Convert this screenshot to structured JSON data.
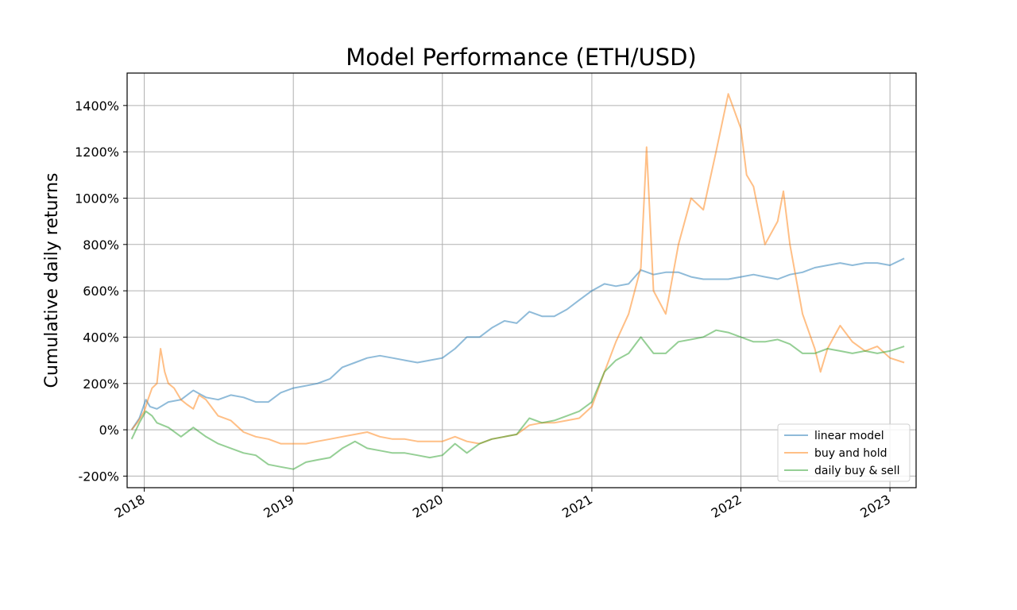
{
  "chart_data": {
    "type": "line",
    "title": "Model Performance (ETH/USD)",
    "xlabel": "",
    "ylabel": "Cumulative daily returns",
    "x_axis": {
      "kind": "date",
      "range": [
        "2017-11-20",
        "2023-03-06"
      ],
      "ticks": [
        {
          "date": "2018-01-01",
          "label": "2018"
        },
        {
          "date": "2019-01-01",
          "label": "2019"
        },
        {
          "date": "2020-01-01",
          "label": "2020"
        },
        {
          "date": "2021-01-01",
          "label": "2021"
        },
        {
          "date": "2022-01-01",
          "label": "2022"
        },
        {
          "date": "2023-01-01",
          "label": "2023"
        }
      ],
      "tick_label_rotation_deg": 30
    },
    "y_axis": {
      "range": [
        -250,
        1540
      ],
      "ticks": [
        -200,
        0,
        200,
        400,
        600,
        800,
        1000,
        1200,
        1400
      ],
      "tick_labels": [
        "-200%",
        "0%",
        "200%",
        "400%",
        "600%",
        "800%",
        "1000%",
        "1200%",
        "1400%"
      ]
    },
    "grid": true,
    "legend_position": "lower-right",
    "series": [
      {
        "name": "linear model",
        "color": "#1f77b4",
        "opacity": 0.5,
        "points": [
          [
            "2017-12-01",
            0
          ],
          [
            "2017-12-20",
            50
          ],
          [
            "2018-01-05",
            130
          ],
          [
            "2018-01-15",
            100
          ],
          [
            "2018-02-01",
            90
          ],
          [
            "2018-03-01",
            120
          ],
          [
            "2018-04-01",
            130
          ],
          [
            "2018-05-01",
            170
          ],
          [
            "2018-06-01",
            140
          ],
          [
            "2018-07-01",
            130
          ],
          [
            "2018-08-01",
            150
          ],
          [
            "2018-09-01",
            140
          ],
          [
            "2018-10-01",
            120
          ],
          [
            "2018-11-01",
            120
          ],
          [
            "2018-12-01",
            160
          ],
          [
            "2019-01-01",
            180
          ],
          [
            "2019-02-01",
            190
          ],
          [
            "2019-03-01",
            200
          ],
          [
            "2019-04-01",
            220
          ],
          [
            "2019-05-01",
            270
          ],
          [
            "2019-06-01",
            290
          ],
          [
            "2019-07-01",
            310
          ],
          [
            "2019-08-01",
            320
          ],
          [
            "2019-09-01",
            310
          ],
          [
            "2019-10-01",
            300
          ],
          [
            "2019-11-01",
            290
          ],
          [
            "2019-12-01",
            300
          ],
          [
            "2020-01-01",
            310
          ],
          [
            "2020-02-01",
            350
          ],
          [
            "2020-03-01",
            400
          ],
          [
            "2020-04-01",
            400
          ],
          [
            "2020-05-01",
            440
          ],
          [
            "2020-06-01",
            470
          ],
          [
            "2020-07-01",
            460
          ],
          [
            "2020-08-01",
            510
          ],
          [
            "2020-09-01",
            490
          ],
          [
            "2020-10-01",
            490
          ],
          [
            "2020-11-01",
            520
          ],
          [
            "2020-12-01",
            560
          ],
          [
            "2021-01-01",
            600
          ],
          [
            "2021-02-01",
            630
          ],
          [
            "2021-03-01",
            620
          ],
          [
            "2021-04-01",
            630
          ],
          [
            "2021-05-01",
            690
          ],
          [
            "2021-06-01",
            670
          ],
          [
            "2021-07-01",
            680
          ],
          [
            "2021-08-01",
            680
          ],
          [
            "2021-09-01",
            660
          ],
          [
            "2021-10-01",
            650
          ],
          [
            "2021-11-01",
            650
          ],
          [
            "2021-12-01",
            650
          ],
          [
            "2022-01-01",
            660
          ],
          [
            "2022-02-01",
            670
          ],
          [
            "2022-03-01",
            660
          ],
          [
            "2022-04-01",
            650
          ],
          [
            "2022-05-01",
            670
          ],
          [
            "2022-06-01",
            680
          ],
          [
            "2022-07-01",
            700
          ],
          [
            "2022-08-01",
            710
          ],
          [
            "2022-09-01",
            720
          ],
          [
            "2022-10-01",
            710
          ],
          [
            "2022-11-01",
            720
          ],
          [
            "2022-12-01",
            720
          ],
          [
            "2023-01-01",
            710
          ],
          [
            "2023-02-05",
            740
          ]
        ]
      },
      {
        "name": "buy and hold",
        "color": "#ff7f0e",
        "opacity": 0.5,
        "points": [
          [
            "2017-12-01",
            0
          ],
          [
            "2017-12-15",
            30
          ],
          [
            "2018-01-01",
            80
          ],
          [
            "2018-01-10",
            130
          ],
          [
            "2018-01-20",
            180
          ],
          [
            "2018-02-01",
            200
          ],
          [
            "2018-02-10",
            350
          ],
          [
            "2018-02-20",
            250
          ],
          [
            "2018-03-01",
            200
          ],
          [
            "2018-03-15",
            180
          ],
          [
            "2018-04-01",
            130
          ],
          [
            "2018-04-15",
            110
          ],
          [
            "2018-05-01",
            90
          ],
          [
            "2018-05-15",
            150
          ],
          [
            "2018-06-01",
            130
          ],
          [
            "2018-07-01",
            60
          ],
          [
            "2018-08-01",
            40
          ],
          [
            "2018-09-01",
            -10
          ],
          [
            "2018-10-01",
            -30
          ],
          [
            "2018-11-01",
            -40
          ],
          [
            "2018-12-01",
            -60
          ],
          [
            "2019-01-01",
            -60
          ],
          [
            "2019-02-01",
            -60
          ],
          [
            "2019-03-01",
            -50
          ],
          [
            "2019-04-01",
            -40
          ],
          [
            "2019-05-01",
            -30
          ],
          [
            "2019-06-01",
            -20
          ],
          [
            "2019-07-01",
            -10
          ],
          [
            "2019-08-01",
            -30
          ],
          [
            "2019-09-01",
            -40
          ],
          [
            "2019-10-01",
            -40
          ],
          [
            "2019-11-01",
            -50
          ],
          [
            "2019-12-01",
            -50
          ],
          [
            "2020-01-01",
            -50
          ],
          [
            "2020-02-01",
            -30
          ],
          [
            "2020-03-01",
            -50
          ],
          [
            "2020-04-01",
            -60
          ],
          [
            "2020-05-01",
            -40
          ],
          [
            "2020-06-01",
            -30
          ],
          [
            "2020-07-01",
            -20
          ],
          [
            "2020-08-01",
            20
          ],
          [
            "2020-09-01",
            30
          ],
          [
            "2020-10-01",
            30
          ],
          [
            "2020-11-01",
            40
          ],
          [
            "2020-12-01",
            50
          ],
          [
            "2021-01-01",
            100
          ],
          [
            "2021-02-01",
            250
          ],
          [
            "2021-03-01",
            380
          ],
          [
            "2021-04-01",
            500
          ],
          [
            "2021-05-01",
            700
          ],
          [
            "2021-05-15",
            1220
          ],
          [
            "2021-06-01",
            600
          ],
          [
            "2021-07-01",
            500
          ],
          [
            "2021-08-01",
            800
          ],
          [
            "2021-09-01",
            1000
          ],
          [
            "2021-10-01",
            950
          ],
          [
            "2021-11-01",
            1200
          ],
          [
            "2021-12-01",
            1450
          ],
          [
            "2022-01-01",
            1300
          ],
          [
            "2022-01-15",
            1100
          ],
          [
            "2022-02-01",
            1050
          ],
          [
            "2022-03-01",
            800
          ],
          [
            "2022-04-01",
            900
          ],
          [
            "2022-04-15",
            1030
          ],
          [
            "2022-05-01",
            800
          ],
          [
            "2022-06-01",
            500
          ],
          [
            "2022-07-01",
            350
          ],
          [
            "2022-07-15",
            250
          ],
          [
            "2022-08-01",
            350
          ],
          [
            "2022-09-01",
            450
          ],
          [
            "2022-10-01",
            380
          ],
          [
            "2022-11-01",
            340
          ],
          [
            "2022-12-01",
            360
          ],
          [
            "2023-01-01",
            310
          ],
          [
            "2023-02-05",
            290
          ]
        ]
      },
      {
        "name": "daily buy & sell",
        "color": "#2ca02c",
        "opacity": 0.5,
        "points": [
          [
            "2017-12-01",
            -40
          ],
          [
            "2017-12-20",
            30
          ],
          [
            "2018-01-05",
            80
          ],
          [
            "2018-01-20",
            60
          ],
          [
            "2018-02-01",
            30
          ],
          [
            "2018-03-01",
            10
          ],
          [
            "2018-04-01",
            -30
          ],
          [
            "2018-05-01",
            10
          ],
          [
            "2018-06-01",
            -30
          ],
          [
            "2018-07-01",
            -60
          ],
          [
            "2018-08-01",
            -80
          ],
          [
            "2018-09-01",
            -100
          ],
          [
            "2018-10-01",
            -110
          ],
          [
            "2018-11-01",
            -150
          ],
          [
            "2018-12-01",
            -160
          ],
          [
            "2019-01-01",
            -170
          ],
          [
            "2019-02-01",
            -140
          ],
          [
            "2019-03-01",
            -130
          ],
          [
            "2019-04-01",
            -120
          ],
          [
            "2019-05-01",
            -80
          ],
          [
            "2019-06-01",
            -50
          ],
          [
            "2019-07-01",
            -80
          ],
          [
            "2019-08-01",
            -90
          ],
          [
            "2019-09-01",
            -100
          ],
          [
            "2019-10-01",
            -100
          ],
          [
            "2019-11-01",
            -110
          ],
          [
            "2019-12-01",
            -120
          ],
          [
            "2020-01-01",
            -110
          ],
          [
            "2020-02-01",
            -60
          ],
          [
            "2020-03-01",
            -100
          ],
          [
            "2020-04-01",
            -60
          ],
          [
            "2020-05-01",
            -40
          ],
          [
            "2020-06-01",
            -30
          ],
          [
            "2020-07-01",
            -20
          ],
          [
            "2020-08-01",
            50
          ],
          [
            "2020-09-01",
            30
          ],
          [
            "2020-10-01",
            40
          ],
          [
            "2020-11-01",
            60
          ],
          [
            "2020-12-01",
            80
          ],
          [
            "2021-01-01",
            120
          ],
          [
            "2021-02-01",
            250
          ],
          [
            "2021-03-01",
            300
          ],
          [
            "2021-04-01",
            330
          ],
          [
            "2021-05-01",
            400
          ],
          [
            "2021-06-01",
            330
          ],
          [
            "2021-07-01",
            330
          ],
          [
            "2021-08-01",
            380
          ],
          [
            "2021-09-01",
            390
          ],
          [
            "2021-10-01",
            400
          ],
          [
            "2021-11-01",
            430
          ],
          [
            "2021-12-01",
            420
          ],
          [
            "2022-01-01",
            400
          ],
          [
            "2022-02-01",
            380
          ],
          [
            "2022-03-01",
            380
          ],
          [
            "2022-04-01",
            390
          ],
          [
            "2022-05-01",
            370
          ],
          [
            "2022-06-01",
            330
          ],
          [
            "2022-07-01",
            330
          ],
          [
            "2022-08-01",
            350
          ],
          [
            "2022-09-01",
            340
          ],
          [
            "2022-10-01",
            330
          ],
          [
            "2022-11-01",
            340
          ],
          [
            "2022-12-01",
            330
          ],
          [
            "2023-01-01",
            340
          ],
          [
            "2023-02-05",
            360
          ]
        ]
      }
    ]
  }
}
